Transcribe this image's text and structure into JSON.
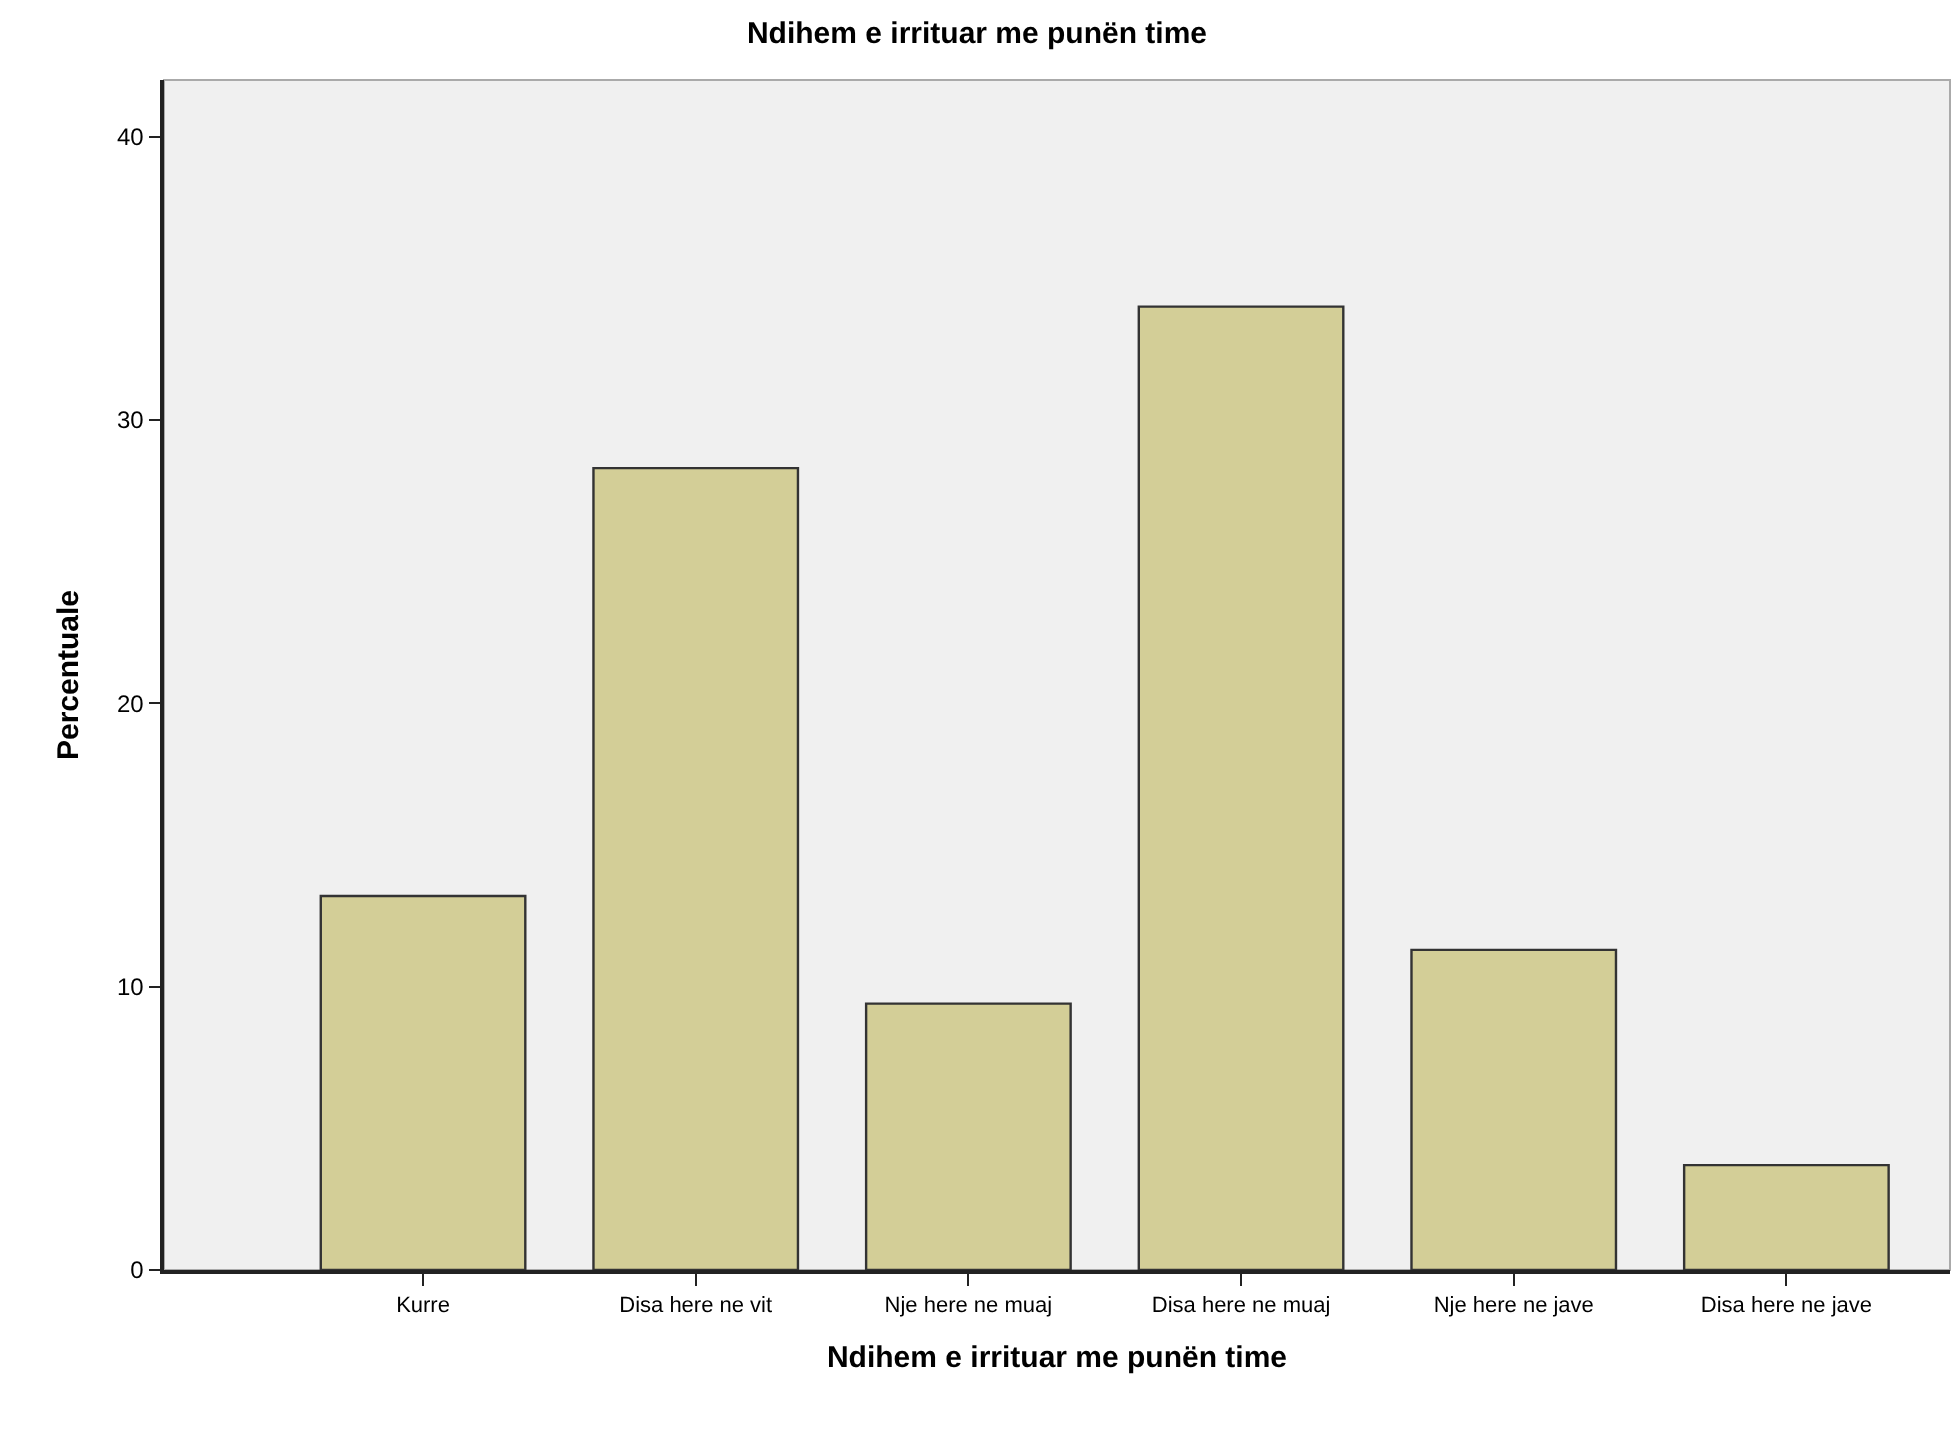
{
  "chart_data": {
    "type": "bar",
    "title": "Ndihem e irrituar me punën time",
    "xlabel": "Ndihem e irrituar me punën time",
    "ylabel": "Percentuale",
    "categories": [
      "Kurre",
      "Disa here ne vit",
      "Nje here ne muaj",
      "Disa here ne muaj",
      "Nje here ne jave",
      "Disa here ne jave"
    ],
    "values": [
      13.2,
      28.3,
      9.4,
      34.0,
      11.3,
      3.7
    ],
    "color": "#d3ce97",
    "ylim": [
      0,
      42
    ],
    "yticks": [
      0,
      10,
      20,
      30,
      40
    ],
    "grid": false
  }
}
